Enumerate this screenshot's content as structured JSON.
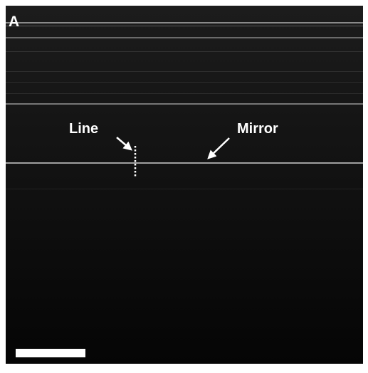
{
  "panel_label": "A",
  "annotations": [
    {
      "label": "Line"
    },
    {
      "label": "Mirror"
    }
  ]
}
